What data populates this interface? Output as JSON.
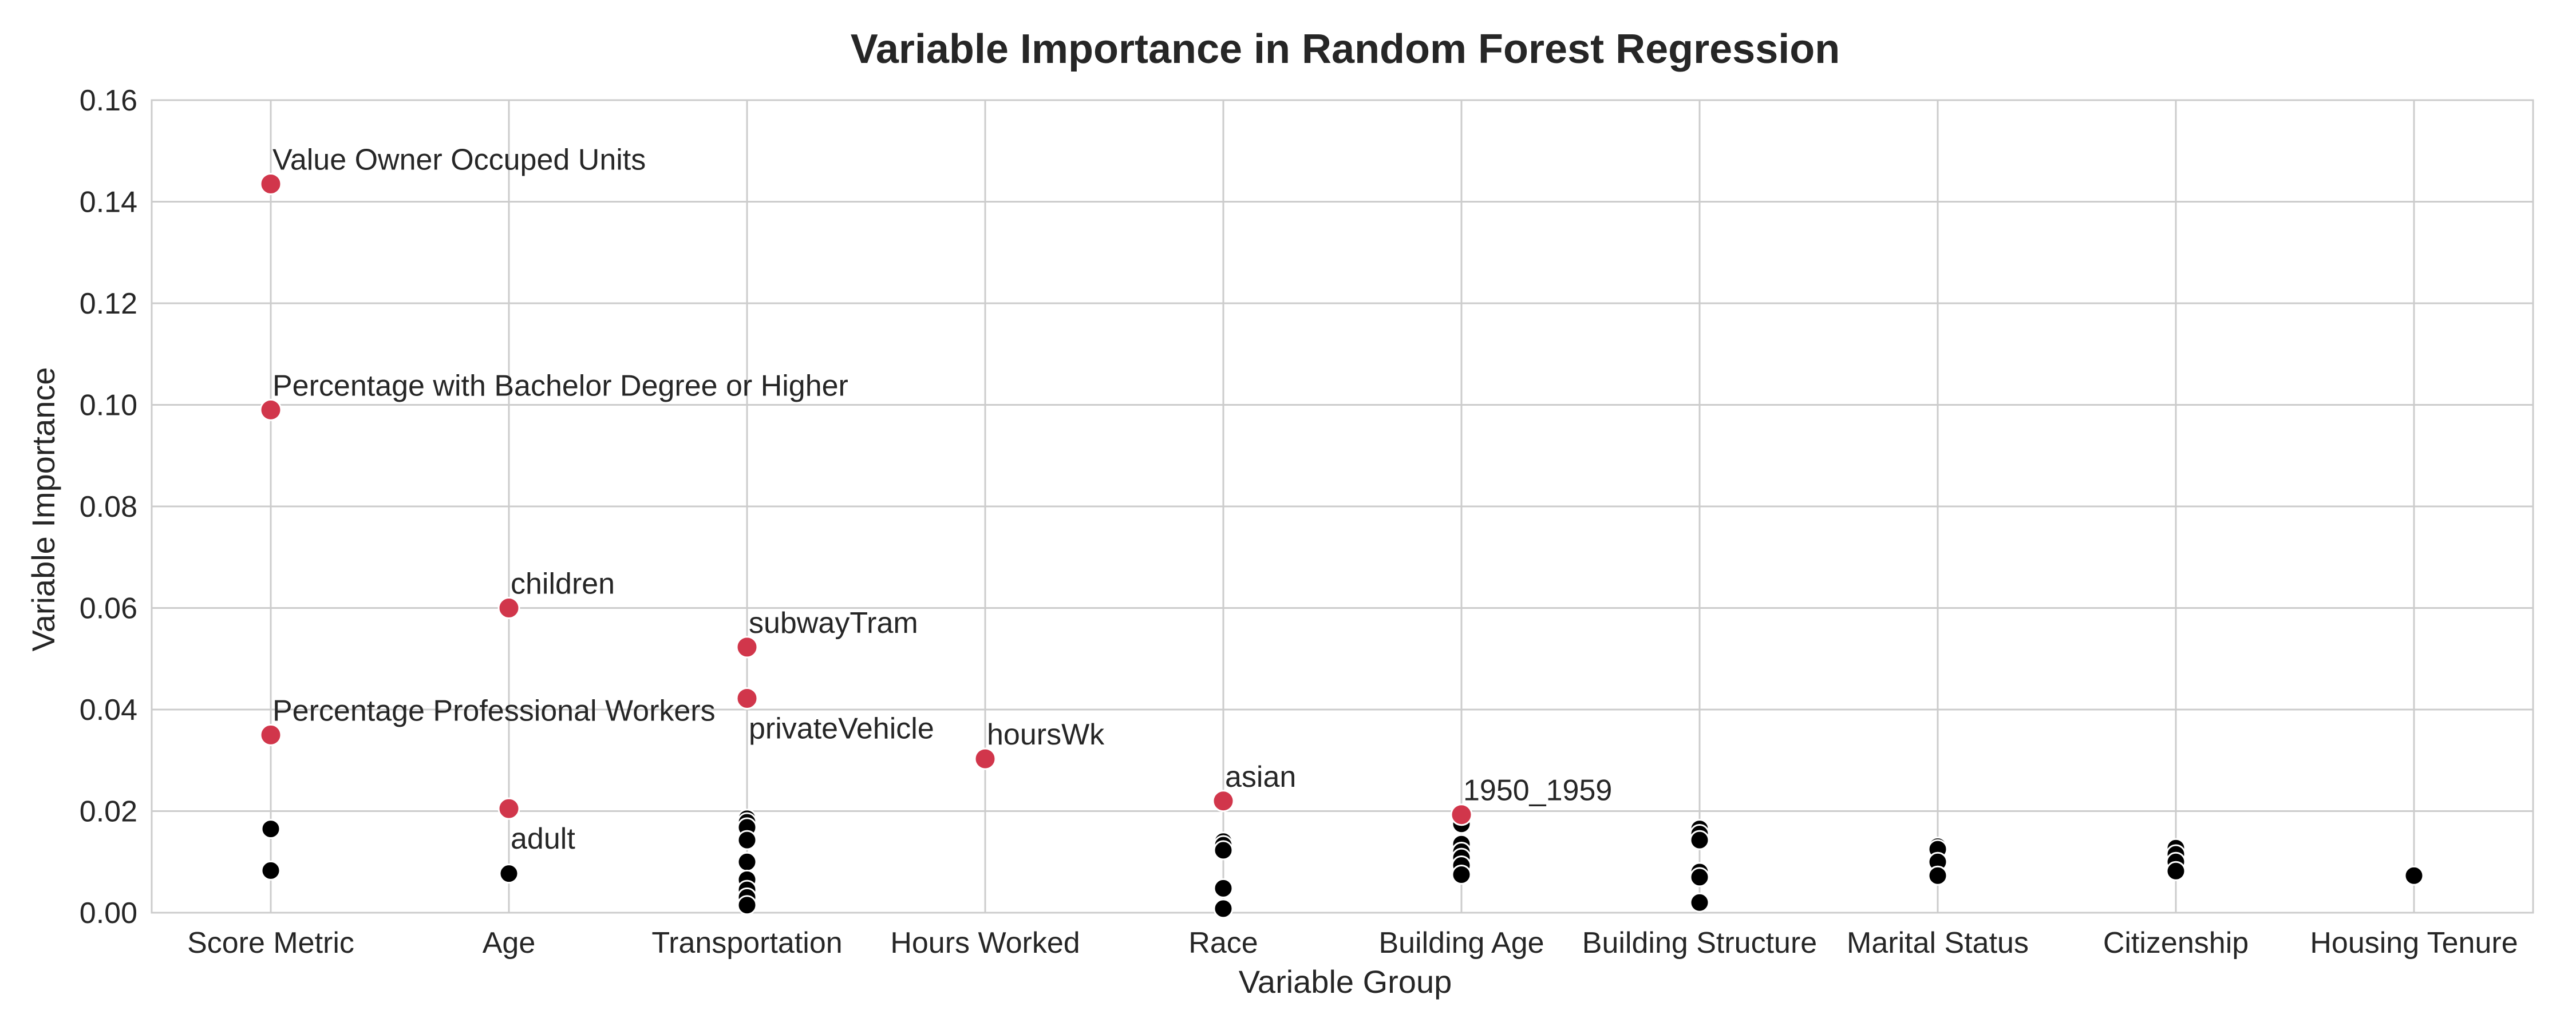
{
  "chart_data": {
    "type": "scatter",
    "title": "Variable Importance in Random Forest Regression",
    "xlabel": "Variable Group",
    "ylabel": "Variable Importance",
    "ylim": [
      0,
      0.16
    ],
    "yticks": [
      "0.00",
      "0.02",
      "0.04",
      "0.06",
      "0.08",
      "0.10",
      "0.12",
      "0.14",
      "0.16"
    ],
    "grid": true,
    "categories": [
      "Score Metric",
      "Age",
      "Transportation",
      "Hours Worked",
      "Race",
      "Building Age",
      "Building Structure",
      "Marital Status",
      "Citizenship",
      "Housing Tenure"
    ],
    "colors": {
      "highlight": "#d1364b",
      "other": "#000000"
    },
    "highlighted": [
      {
        "category": "Score Metric",
        "y": 0.1435,
        "label": "Value Owner Occuped Units",
        "label_pos": "above"
      },
      {
        "category": "Score Metric",
        "y": 0.099,
        "label": "Percentage with Bachelor Degree or Higher",
        "label_pos": "above"
      },
      {
        "category": "Score Metric",
        "y": 0.035,
        "label": "Percentage Professional Workers",
        "label_pos": "above"
      },
      {
        "category": "Age",
        "y": 0.06,
        "label": "children",
        "label_pos": "above"
      },
      {
        "category": "Age",
        "y": 0.0205,
        "label": "adult",
        "label_pos": "below"
      },
      {
        "category": "Transportation",
        "y": 0.0523,
        "label": "subwayTram",
        "label_pos": "above"
      },
      {
        "category": "Transportation",
        "y": 0.0422,
        "label": "privateVehicle",
        "label_pos": "below"
      },
      {
        "category": "Hours Worked",
        "y": 0.0303,
        "label": "hoursWk",
        "label_pos": "above"
      },
      {
        "category": "Race",
        "y": 0.022,
        "label": "asian",
        "label_pos": "above"
      },
      {
        "category": "Building Age",
        "y": 0.0193,
        "label": "1950_1959",
        "label_pos": "above"
      }
    ],
    "others": [
      {
        "category": "Score Metric",
        "y": [
          0.0165,
          0.0083
        ]
      },
      {
        "category": "Age",
        "y": [
          0.0077
        ]
      },
      {
        "category": "Transportation",
        "y": [
          0.0185,
          0.0178,
          0.0168,
          0.0143,
          0.01,
          0.0065,
          0.0045,
          0.003,
          0.0015
        ]
      },
      {
        "category": "Race",
        "y": [
          0.014,
          0.0133,
          0.0123,
          0.0048,
          0.0008
        ]
      },
      {
        "category": "Building Age",
        "y": [
          0.0175,
          0.0135,
          0.012,
          0.0108,
          0.0093,
          0.0075
        ]
      },
      {
        "category": "Building Structure",
        "y": [
          0.0165,
          0.0155,
          0.0143,
          0.008,
          0.007,
          0.002
        ]
      },
      {
        "category": "Marital Status",
        "y": [
          0.013,
          0.0125,
          0.01,
          0.0073
        ]
      },
      {
        "category": "Citizenship",
        "y": [
          0.0127,
          0.0115,
          0.01,
          0.0082
        ]
      },
      {
        "category": "Housing Tenure",
        "y": [
          0.0073
        ]
      }
    ]
  }
}
